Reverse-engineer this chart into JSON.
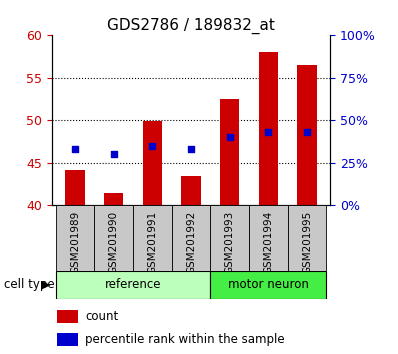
{
  "title": "GDS2786 / 189832_at",
  "samples": [
    "GSM201989",
    "GSM201990",
    "GSM201991",
    "GSM201992",
    "GSM201993",
    "GSM201994",
    "GSM201995"
  ],
  "counts": [
    44.1,
    41.5,
    49.9,
    43.5,
    52.5,
    58.0,
    56.5
  ],
  "percentiles": [
    33,
    30,
    35,
    33,
    40,
    43,
    43
  ],
  "ylim_left": [
    40,
    60
  ],
  "ylim_right": [
    0,
    100
  ],
  "yticks_left": [
    40,
    45,
    50,
    55,
    60
  ],
  "yticks_right": [
    0,
    25,
    50,
    75,
    100
  ],
  "ytick_labels_right": [
    "0%",
    "25%",
    "50%",
    "75%",
    "100%"
  ],
  "grid_lines": [
    45,
    50,
    55
  ],
  "bar_color": "#cc0000",
  "dot_color": "#0000cc",
  "bar_bottom": 40,
  "cell_type_label": "cell type",
  "legend_count": "count",
  "legend_percentile": "percentile rank within the sample",
  "left_axis_color": "#cc0000",
  "right_axis_color": "#0000cc",
  "title_fontsize": 11,
  "tick_fontsize": 9,
  "bar_width": 0.5,
  "sample_box_color": "#c8c8c8",
  "reference_color": "#bbffbb",
  "motor_neuron_color": "#44ee44",
  "reference_label": "reference",
  "motor_neuron_label": "motor neuron",
  "reference_samples": 4,
  "motor_neuron_samples": 3
}
